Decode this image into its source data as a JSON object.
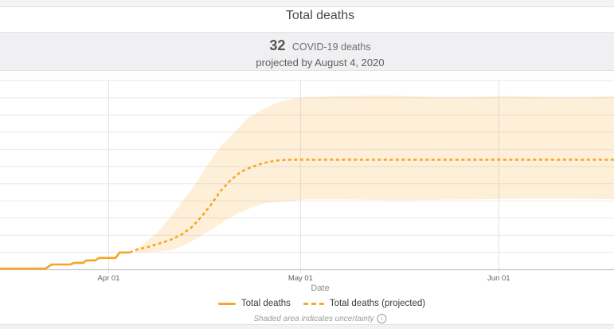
{
  "header": {
    "title": "Total deaths"
  },
  "summary": {
    "count": "32",
    "count_label": "COVID-19 deaths",
    "projection_text": "projected by August 4, 2020"
  },
  "legend": {
    "items": [
      {
        "label": "Total deaths",
        "style": "solid"
      },
      {
        "label": "Total deaths (projected)",
        "style": "dashed"
      }
    ]
  },
  "footer": {
    "note": "Shaded area indicates uncertainty",
    "info_icon_glyph": "i"
  },
  "colors": {
    "accent_orange": "#F5A623",
    "band_fill": "rgba(246,168,40,0.18)",
    "gridline": "#e8e8ea",
    "vertical_gridline": "#e2e2e5",
    "axis_line": "#c8c8cb",
    "tick_label": "#636363"
  },
  "chart_data": {
    "type": "line",
    "title": "Total deaths",
    "xlabel": "Date",
    "ylabel": "",
    "x_unit": "days since 2020-03-15",
    "x_start_date": "2020-03-15",
    "xlim_days": [
      0,
      96
    ],
    "ylim": [
      0,
      55
    ],
    "grid": true,
    "legend_position": "bottom",
    "annotation": "Shaded area indicates uncertainty",
    "x_ticks": [
      {
        "day": 17,
        "label": "Apr 01"
      },
      {
        "day": 47,
        "label": "May 01"
      },
      {
        "day": 78,
        "label": "Jun 01"
      }
    ],
    "y_gridline_values": [
      5,
      10,
      15,
      20,
      25,
      30,
      35,
      40,
      45,
      50,
      55
    ],
    "projected_final_value": 32,
    "projected_final_date": "2020-08-04",
    "series": [
      {
        "name": "Total deaths",
        "style": "solid",
        "points": [
          [
            0,
            0.3
          ],
          [
            7.1,
            0.3
          ],
          [
            8.1,
            1.5
          ],
          [
            11,
            1.5
          ],
          [
            11.6,
            2
          ],
          [
            13,
            2
          ],
          [
            13.5,
            2.7
          ],
          [
            14.9,
            2.7
          ],
          [
            15.5,
            3.4
          ],
          [
            18.1,
            3.4
          ],
          [
            18.7,
            5
          ],
          [
            20.3,
            5
          ]
        ]
      },
      {
        "name": "Total deaths (projected)",
        "style": "dashed",
        "points": [
          [
            20.3,
            5
          ],
          [
            21.4,
            5.9
          ],
          [
            23.2,
            6.6
          ],
          [
            24.9,
            7.6
          ],
          [
            26.5,
            8.5
          ],
          [
            28.3,
            10.1
          ],
          [
            29.9,
            12.2
          ],
          [
            31.5,
            15.4
          ],
          [
            33,
            18.9
          ],
          [
            34.5,
            22.9
          ],
          [
            36.1,
            26.1
          ],
          [
            37.6,
            28.4
          ],
          [
            39.2,
            29.8
          ],
          [
            41.1,
            31
          ],
          [
            43,
            31.7
          ],
          [
            44.8,
            32
          ],
          [
            46.7,
            32
          ],
          [
            96,
            32
          ]
        ]
      },
      {
        "name": "Uncertainty upper bound",
        "style": "band-upper",
        "points": [
          [
            21.1,
            5.5
          ],
          [
            23,
            8.3
          ],
          [
            24.9,
            11.3
          ],
          [
            26.7,
            15.4
          ],
          [
            28.6,
            20
          ],
          [
            30.5,
            24.7
          ],
          [
            32.6,
            30.9
          ],
          [
            34.6,
            36.1
          ],
          [
            36.7,
            40
          ],
          [
            38.8,
            44.2
          ],
          [
            41.1,
            46.7
          ],
          [
            43.6,
            48.8
          ],
          [
            45.8,
            49.8
          ],
          [
            47.9,
            50.2
          ],
          [
            52.3,
            50.5
          ],
          [
            59.8,
            50.7
          ],
          [
            69.7,
            50.2
          ],
          [
            79.7,
            50.5
          ],
          [
            89.6,
            50.2
          ],
          [
            96,
            50.5
          ]
        ]
      },
      {
        "name": "Uncertainty lower bound",
        "style": "band-lower",
        "points": [
          [
            21.1,
            4.9
          ],
          [
            23,
            5.1
          ],
          [
            24.9,
            5.3
          ],
          [
            27,
            5.8
          ],
          [
            29,
            7.2
          ],
          [
            31.1,
            9.5
          ],
          [
            33.2,
            11.9
          ],
          [
            35.2,
            14.2
          ],
          [
            37.3,
            16.5
          ],
          [
            39.4,
            18.1
          ],
          [
            41.4,
            19.3
          ],
          [
            43.6,
            19.8
          ],
          [
            45.5,
            20
          ],
          [
            47.7,
            20.5
          ],
          [
            52.3,
            20.5
          ],
          [
            62.3,
            20.2
          ],
          [
            74.8,
            20.5
          ],
          [
            87.2,
            20.7
          ],
          [
            96,
            20.5
          ]
        ]
      }
    ]
  }
}
